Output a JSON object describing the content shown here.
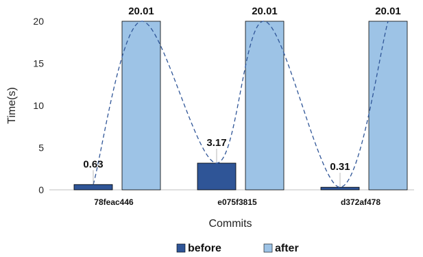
{
  "chart_data": {
    "type": "bar",
    "categories": [
      "78feac446",
      "e075f3815",
      "d372af478"
    ],
    "series": [
      {
        "name": "before",
        "values": [
          0.63,
          3.17,
          0.31
        ],
        "color": "#2f5597"
      },
      {
        "name": "after",
        "values": [
          20.01,
          20.01,
          20.01
        ],
        "color": "#9dc3e6"
      }
    ],
    "data_labels": [
      "0.63",
      "20.01",
      "3.17",
      "20.01",
      "0.31",
      "20.01"
    ],
    "xlabel": "Commits",
    "ylabel": "Time(s)",
    "ylim": [
      0,
      20
    ],
    "yticks": [
      0,
      5,
      10,
      15,
      20
    ],
    "grid": false,
    "legend_position": "bottom",
    "trend_line": {
      "style": "dashed curve",
      "color": "#2f5597"
    }
  }
}
